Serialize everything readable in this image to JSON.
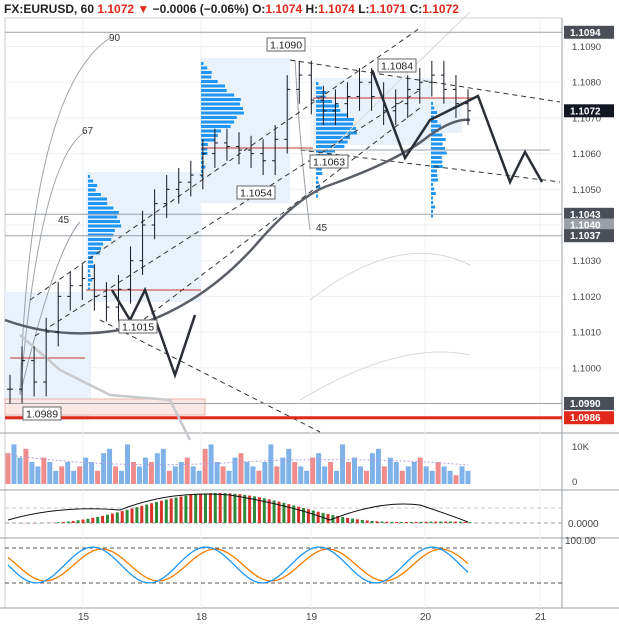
{
  "header": {
    "symbol": "FX:EURUSD, 60",
    "last": "1.1072",
    "arrow": "▼",
    "change": "−0.0006 (−0.06%)",
    "o_label": "O:",
    "o_value": "1.1074",
    "h_label": "H:",
    "h_value": "1.1074",
    "l_label": "L:",
    "l_value": "1.1071",
    "c_label": "C:",
    "c_value": "1.1072"
  },
  "chart_data": [
    {
      "type": "candlestick",
      "x_ticks": [
        "15",
        "18",
        "19",
        "20",
        "21"
      ],
      "y_ticks": [
        "1.1090",
        "1.1080",
        "1.1070",
        "1.1060",
        "1.1050",
        "1.1040",
        "1.1030",
        "1.1020",
        "1.1010",
        "1.1000",
        "1.0990"
      ],
      "ylim": [
        1.0982,
        1.1098
      ],
      "price_labels": [
        {
          "value": "1.1094",
          "color": "#4a4f57"
        },
        {
          "value": "1.1072",
          "color": "#131722"
        },
        {
          "value": "1.1043",
          "color": "#4a4f57"
        },
        {
          "value": "1.1040",
          "color": "#9aa0a6"
        },
        {
          "value": "1.1037",
          "color": "#4a4f57"
        },
        {
          "value": "1.0990",
          "color": "#4a4f57"
        },
        {
          "value": "1.0986",
          "color": "#e0291b"
        }
      ],
      "annotations": [
        "1.1090",
        "1.1084",
        "1.1063",
        "1.1054",
        "1.1015",
        "1.0989"
      ],
      "gann_labels": [
        "90",
        "67",
        "45",
        "45"
      ],
      "close_series": [
        1.0994,
        1.1002,
        1.0996,
        1.101,
        1.102,
        1.1023,
        1.1025,
        1.102,
        1.1017,
        1.1022,
        1.103,
        1.104,
        1.1046,
        1.105,
        1.1052,
        1.1054,
        1.106,
        1.1063,
        1.1062,
        1.1061,
        1.106,
        1.1058,
        1.1064,
        1.1078,
        1.1082,
        1.1075,
        1.1072,
        1.1074,
        1.1076,
        1.108,
        1.1076,
        1.1072,
        1.1074,
        1.1078,
        1.108,
        1.1082,
        1.1078,
        1.1074,
        1.1072
      ],
      "colors": {
        "candle": "#131722",
        "ma": "#5a5e66",
        "trend": "#2a2e36",
        "support": "#e0291b",
        "profile": "#2196f3"
      }
    },
    {
      "type": "bar",
      "name": "volume",
      "y_ticks": [
        "10K",
        "0"
      ],
      "values": [
        7,
        9,
        6,
        8,
        5,
        4,
        6,
        5,
        3,
        4,
        5,
        3,
        4,
        6,
        5,
        3,
        7,
        8,
        4,
        3,
        9,
        5,
        4,
        6,
        5,
        7,
        8,
        3,
        4,
        5,
        6,
        4,
        3,
        8,
        9,
        5,
        4,
        3,
        6,
        7,
        5,
        4,
        3,
        5,
        9,
        4,
        6,
        8,
        5,
        4,
        3,
        6,
        7,
        4,
        5,
        3,
        9,
        5,
        6,
        4,
        3,
        7,
        8,
        4,
        6,
        5,
        3,
        4,
        5,
        6,
        4,
        3,
        5,
        4,
        3,
        2,
        4,
        3
      ],
      "colors": {
        "up": "#7fb2e8",
        "down": "#f08c8c"
      }
    },
    {
      "type": "histogram",
      "name": "oscillator",
      "y_ticks": [
        "0.0000"
      ]
    },
    {
      "type": "line",
      "name": "stochastic",
      "y_ticks": [
        "100.00"
      ],
      "colors": {
        "k": "#2196f3",
        "d": "#f57c00"
      }
    }
  ]
}
